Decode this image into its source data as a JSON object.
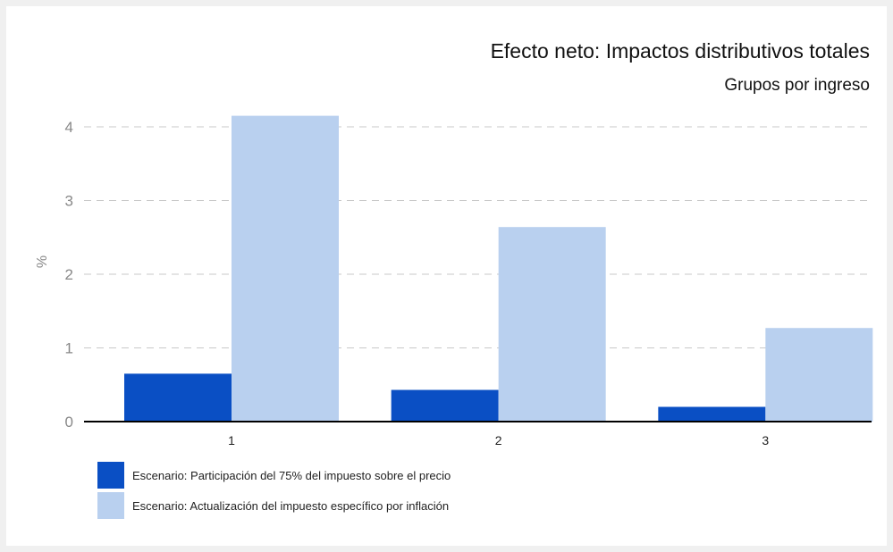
{
  "chart_data": {
    "type": "bar",
    "title": "Efecto neto: Impactos distributivos totales",
    "subtitle": "Grupos por ingreso",
    "xlabel": "",
    "ylabel": "%",
    "categories": [
      "1",
      "2",
      "3"
    ],
    "ylim": [
      0,
      4.4
    ],
    "yticks": [
      0,
      1,
      2,
      3,
      4
    ],
    "grid": true,
    "legend_position": "bottom-left",
    "series": [
      {
        "name": "Escenario: Participación del 75% del impuesto sobre el precio",
        "color": "#0a4fc4",
        "values": [
          0.65,
          0.43,
          0.2
        ]
      },
      {
        "name": "Escenario: Actualización del impuesto específico por inflación",
        "color": "#b9d0ef",
        "values": [
          4.15,
          2.64,
          1.27
        ]
      }
    ]
  }
}
